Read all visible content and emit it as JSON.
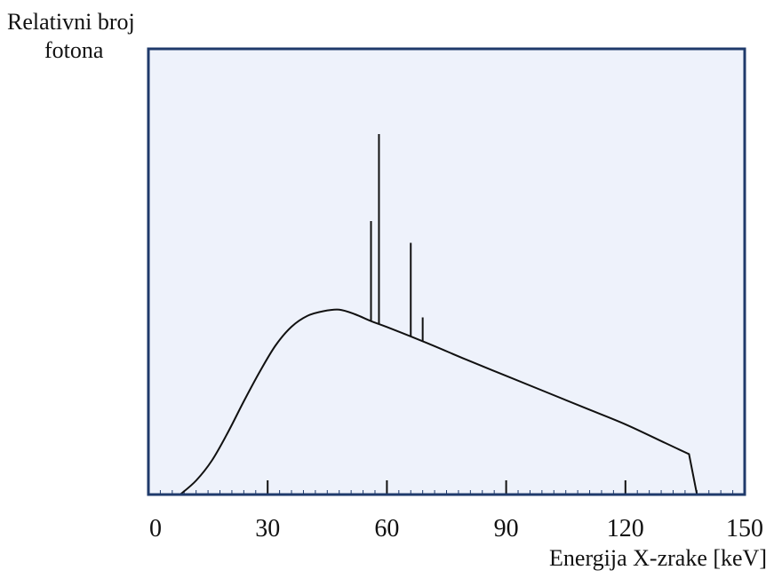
{
  "chart_data": {
    "type": "line",
    "ylabel_lines": [
      "Relativni broj",
      "fotona"
    ],
    "xlabel": "Energija X-zrake [keV]",
    "xlim": [
      0,
      150
    ],
    "ylim": [
      0,
      100
    ],
    "major_ticks": [
      0,
      30,
      60,
      90,
      120,
      150
    ],
    "tick_labels": [
      "0",
      "30",
      "60",
      "90",
      "120",
      "150"
    ],
    "minor_tick_step": 3,
    "colors": {
      "plot_background": "#eef2fb",
      "frame": "#1f3a6b",
      "curve": "#111111"
    },
    "continuum": {
      "name": "",
      "x": [
        8,
        12,
        16,
        20,
        24,
        28,
        32,
        36,
        40,
        44,
        48,
        52,
        56,
        60,
        70,
        80,
        90,
        100,
        110,
        120,
        130,
        136
      ],
      "y": [
        0,
        4.5,
        11,
        20,
        30,
        39.5,
        48,
        54,
        57.5,
        59,
        59.5,
        58,
        55.8,
        53.9,
        48.8,
        43.4,
        38.2,
        33,
        27.8,
        22.6,
        16.6,
        13
      ]
    },
    "spectral_lines": [
      {
        "x": 56,
        "y_top": 88,
        "y_base": 55.8
      },
      {
        "x": 58,
        "y_top": 116,
        "y_base": 54.8
      },
      {
        "x": 66,
        "y_top": 81,
        "y_base": 50.8
      },
      {
        "x": 69,
        "y_top": 57,
        "y_base": 49.3
      }
    ]
  }
}
